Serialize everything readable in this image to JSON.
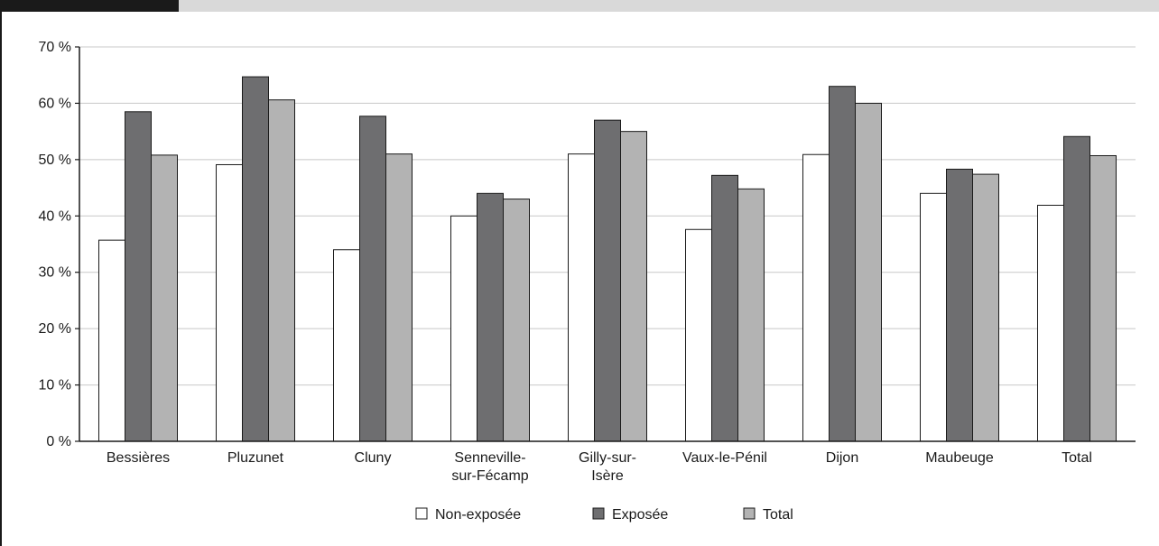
{
  "chart_data": {
    "type": "bar",
    "categories": [
      [
        "Bessières"
      ],
      [
        "Pluzunet"
      ],
      [
        "Cluny"
      ],
      [
        "Senneville-",
        "sur-Fécamp"
      ],
      [
        "Gilly-sur-",
        "Isère"
      ],
      [
        "Vaux-le-Pénil"
      ],
      [
        "Dijon"
      ],
      [
        "Maubeuge"
      ],
      [
        "Total"
      ]
    ],
    "series": [
      {
        "name": "Non-exposée",
        "color": "#ffffff",
        "values": [
          35.7,
          49.1,
          34.0,
          40.0,
          51.0,
          37.6,
          50.9,
          44.0,
          41.9
        ]
      },
      {
        "name": "Exposée",
        "color": "#6e6e70",
        "values": [
          58.5,
          64.7,
          57.7,
          44.0,
          57.0,
          47.2,
          63.0,
          48.3,
          54.1
        ]
      },
      {
        "name": "Total",
        "color": "#b3b3b3",
        "values": [
          50.8,
          60.6,
          51.0,
          43.0,
          55.0,
          44.8,
          60.0,
          47.4,
          50.7
        ]
      }
    ],
    "yticks": [
      0,
      10,
      20,
      30,
      40,
      50,
      60,
      70
    ],
    "ytick_labels": [
      "0 %",
      "10 %",
      "20 %",
      "30 %",
      "40 %",
      "50 %",
      "60 %",
      "70 %"
    ],
    "ylim": [
      0,
      70
    ],
    "grid": true,
    "legend_position": "bottom",
    "title": "",
    "xlabel": "",
    "ylabel": ""
  }
}
